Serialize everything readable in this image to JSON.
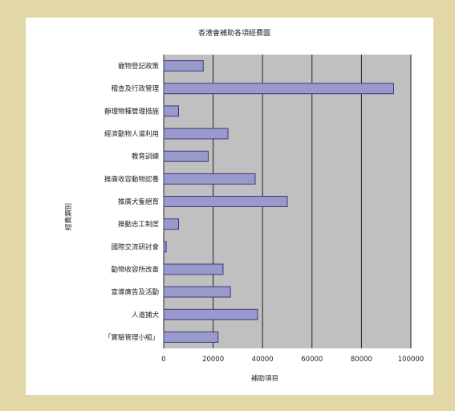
{
  "chart_data": {
    "type": "bar",
    "orientation": "horizontal",
    "title": "香港會補助各項經費圖",
    "xlabel": "補助項目",
    "ylabel": "經費類別",
    "xlim": [
      0,
      100000
    ],
    "xticks": [
      "0",
      "20000",
      "40000",
      "60000",
      "80000",
      "100000"
    ],
    "grid": true,
    "plot_background": "#c0c0c0",
    "bar_color": "#9999cc",
    "bar_edge_color": "#3a3a7a",
    "categories": [
      "寵物登記政策",
      "稽查及行政管理",
      "靜理物種管理措施",
      "經濟動物人道利用",
      "教育訓練",
      "推廣收容動物認養",
      "推廣犬隻絕育",
      "推動志工制度",
      "國際交流研討會",
      "動物收容所改善",
      "宣導廣告及活動",
      "人道捕犬",
      "「實驗管理小組」"
    ],
    "values": [
      16000,
      93000,
      6000,
      26000,
      18000,
      37000,
      50000,
      6000,
      1000,
      24000,
      27000,
      38000,
      22000
    ]
  }
}
